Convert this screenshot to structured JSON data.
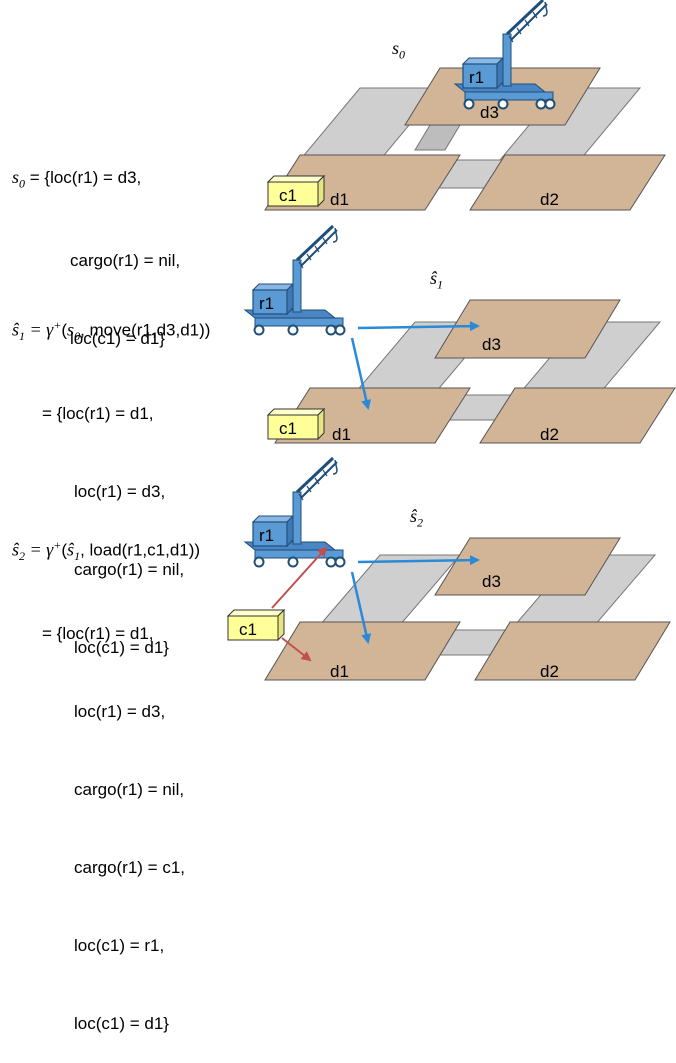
{
  "states": [
    {
      "label_base": "s",
      "label_sub": "0",
      "def_lhs": "s",
      "def_lhs_sub": "0",
      "def_rhs": "= {loc(r1) = d3,",
      "lines": [
        "cargo(r1) = nil,",
        "loc(c1) = d1}"
      ]
    },
    {
      "label_base": "ŝ",
      "label_sub": "1",
      "def_lhs": "ŝ",
      "def_lhs_sub": "1",
      "def_rhs_pre": " = γ",
      "def_rhs_sup": "+",
      "def_rhs_arg_open": "(",
      "def_rhs_arg_state": "s",
      "def_rhs_arg_state_sub": "0",
      "def_rhs_action": ", move(r1,d3,d1))",
      "lines": [
        "= {loc(r1) = d1,",
        "loc(r1) = d3,",
        "cargo(r1) = nil,",
        "loc(c1) = d1}"
      ]
    },
    {
      "label_base": "ŝ",
      "label_sub": "2",
      "def_lhs": "ŝ",
      "def_lhs_sub": "2",
      "def_rhs_pre": " = γ",
      "def_rhs_sup": "+",
      "def_rhs_arg_open": "(",
      "def_rhs_arg_state": "ŝ",
      "def_rhs_arg_state_sub": "1",
      "def_rhs_action": ", load(r1,c1,d1))",
      "lines": [
        "= {loc(r1) = d1,",
        "loc(r1) = d3,",
        "cargo(r1) = nil,",
        "cargo(r1) = c1,",
        "loc(c1) = r1,",
        "loc(c1) = d1}"
      ]
    }
  ],
  "objects": {
    "robot": "r1",
    "container": "c1",
    "docks": [
      "d1",
      "d2",
      "d3"
    ]
  },
  "colors": {
    "dock": "#d2b596",
    "road": "#cfcfcf",
    "robot": "#5b9bd5",
    "container": "#ffff99",
    "move_arrow": "#2a8ad8",
    "load_arrow": "#c0504d"
  }
}
